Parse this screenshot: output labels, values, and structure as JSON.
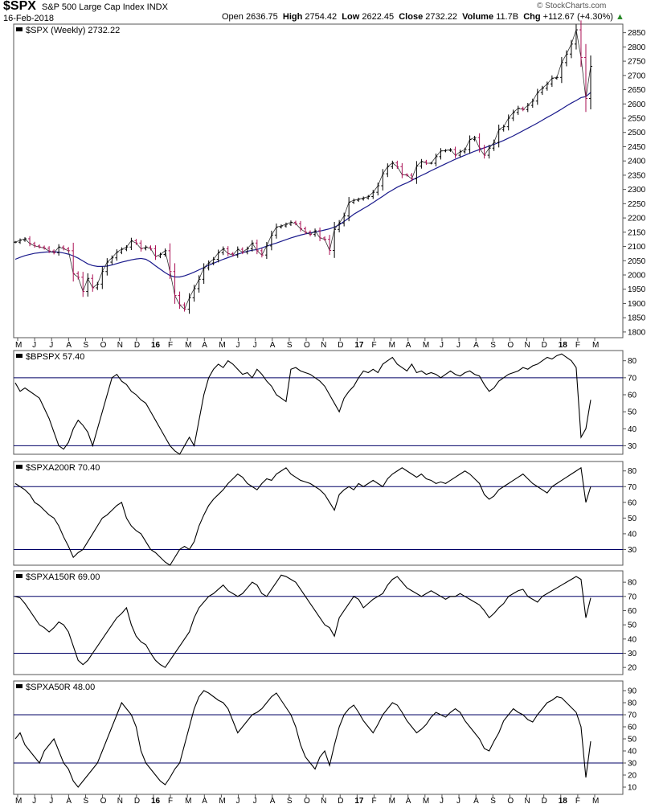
{
  "header": {
    "symbol": "$SPX",
    "description": "S&P 500 Large Cap Index  INDX",
    "date": "16-Feb-2018",
    "quote": {
      "open_label": "Open",
      "open": "2636.75",
      "high_label": "High",
      "high": "2754.42",
      "low_label": "Low",
      "low": "2622.45",
      "close_label": "Close",
      "close": "2732.22",
      "volume_label": "Volume",
      "volume": "11.7B",
      "chg_label": "Chg",
      "chg": "+112.67 (+4.30%)"
    },
    "credit": "© StockCharts.com"
  },
  "colors": {
    "price": "#000000",
    "down_bar": "#aa1155",
    "ma": "#1a1a8c",
    "ref_line": "#000066"
  },
  "x_axis": {
    "months_top": [
      "M",
      "J",
      "J",
      "A",
      "S",
      "O",
      "N",
      "D",
      "16",
      "F",
      "M",
      "A",
      "M",
      "J",
      "J",
      "A",
      "S",
      "O",
      "N",
      "D",
      "17",
      "F",
      "M",
      "A",
      "M",
      "J",
      "J",
      "A",
      "S",
      "O",
      "N",
      "D",
      "18",
      "F",
      "M"
    ],
    "months_bottom": [
      "M",
      "J",
      "J",
      "A",
      "S",
      "O",
      "N",
      "D",
      "16",
      "F",
      "M",
      "A",
      "M",
      "J",
      "J",
      "A",
      "S",
      "O",
      "N",
      "D",
      "17",
      "F",
      "M",
      "A",
      "M",
      "J",
      "J",
      "A",
      "S",
      "O",
      "N",
      "D",
      "18",
      "F",
      "M"
    ],
    "bold_labels": [
      "16",
      "17",
      "18"
    ]
  },
  "chart_data": [
    {
      "type": "line",
      "subtype": "ohlc-bars",
      "title": "$SPX (Weekly) 2732.22",
      "ylim": [
        1780,
        2880
      ],
      "yticks": [
        1800,
        1850,
        1900,
        1950,
        2000,
        2050,
        2100,
        2150,
        2200,
        2250,
        2300,
        2350,
        2400,
        2450,
        2500,
        2550,
        2600,
        2650,
        2700,
        2750,
        2800,
        2850
      ],
      "series": [
        {
          "values": [
            2115,
            2122,
            2127,
            2110,
            2102,
            2098,
            2094,
            2084,
            2078,
            2098,
            2092,
            2085,
            2005,
            1992,
            1942,
            1988,
            1955,
            1968,
            2012,
            2045,
            2060,
            2080,
            2090,
            2098,
            2120,
            2112,
            2092,
            2098,
            2092,
            2065,
            2072,
            2085,
            2012,
            1928,
            1895,
            1880,
            1920,
            1952,
            1985,
            2025,
            2042,
            2055,
            2078,
            2092,
            2075,
            2070,
            2090,
            2080,
            2092,
            2112,
            2085,
            2070,
            2102,
            2140,
            2168,
            2172,
            2178,
            2185,
            2180,
            2162,
            2150,
            2142,
            2155,
            2130,
            2125,
            2086,
            2160,
            2182,
            2207,
            2255,
            2262,
            2266,
            2270,
            2275,
            2290,
            2313,
            2355,
            2380,
            2393,
            2380,
            2352,
            2350,
            2337,
            2382,
            2398,
            2392,
            2392,
            2415,
            2435,
            2437,
            2440,
            2420,
            2432,
            2440,
            2475,
            2482,
            2445,
            2420,
            2445,
            2465,
            2510,
            2520,
            2550,
            2570,
            2585,
            2580,
            2595,
            2610,
            2640,
            2655,
            2670,
            2690,
            2693,
            2745,
            2775,
            2810,
            2860,
            2763,
            2619,
            2732
          ]
        },
        {
          "name": "",
          "values": [
            2055,
            2062,
            2068,
            2072,
            2076,
            2078,
            2080,
            2081,
            2081,
            2080,
            2077,
            2073,
            2067,
            2059,
            2049,
            2039,
            2033,
            2030,
            2030,
            2031,
            2035,
            2040,
            2045,
            2049,
            2053,
            2056,
            2058,
            2055,
            2045,
            2032,
            2020,
            2008,
            1998,
            1993,
            1993,
            1997,
            2003,
            2010,
            2018,
            2026,
            2034,
            2041,
            2048,
            2055,
            2061,
            2067,
            2073,
            2078,
            2083,
            2087,
            2089,
            2095,
            2101,
            2107,
            2112,
            2118,
            2124,
            2130,
            2135,
            2140,
            2144,
            2148,
            2150,
            2154,
            2158,
            2162,
            2168,
            2176,
            2188,
            2200,
            2213,
            2223,
            2233,
            2243,
            2254,
            2265,
            2276,
            2288,
            2298,
            2308,
            2316,
            2323,
            2332,
            2341,
            2349,
            2357,
            2366,
            2374,
            2382,
            2390,
            2398,
            2406,
            2413,
            2420,
            2427,
            2434,
            2440,
            2446,
            2452,
            2458,
            2465,
            2472,
            2480,
            2488,
            2497,
            2506,
            2515,
            2524,
            2533,
            2543,
            2553,
            2562,
            2572,
            2582,
            2593,
            2603,
            2612,
            2622,
            2626,
            2640
          ]
        }
      ]
    },
    {
      "type": "line",
      "title": "$BPSPX 57.40",
      "ylim": [
        25,
        86
      ],
      "yticks": [
        30,
        40,
        50,
        60,
        70,
        80
      ],
      "reference_lines": [
        70,
        30
      ],
      "series": [
        {
          "values": [
            67,
            62,
            64,
            62,
            60,
            58,
            52,
            46,
            38,
            30,
            28,
            32,
            40,
            45,
            42,
            38,
            30,
            40,
            50,
            60,
            70,
            72,
            68,
            66,
            62,
            60,
            57,
            55,
            50,
            45,
            40,
            35,
            30,
            27,
            25,
            30,
            35,
            30,
            45,
            60,
            70,
            75,
            78,
            76,
            80,
            78,
            75,
            72,
            73,
            70,
            75,
            72,
            68,
            65,
            60,
            58,
            56,
            75,
            76,
            74,
            73,
            72,
            70,
            68,
            65,
            60,
            55,
            50,
            58,
            62,
            65,
            70,
            74,
            73,
            75,
            73,
            78,
            80,
            82,
            78,
            76,
            74,
            78,
            73,
            74,
            72,
            73,
            72,
            70,
            72,
            74,
            72,
            71,
            73,
            74,
            72,
            71,
            66,
            62,
            64,
            68,
            70,
            72,
            73,
            74,
            76,
            75,
            77,
            78,
            80,
            82,
            81,
            83,
            84,
            82,
            80,
            76,
            35,
            40,
            57
          ]
        }
      ]
    },
    {
      "type": "line",
      "title": "$SPXA200R 70.40",
      "ylim": [
        20,
        86
      ],
      "yticks": [
        30,
        40,
        50,
        60,
        70,
        80
      ],
      "reference_lines": [
        70,
        30
      ],
      "series": [
        {
          "values": [
            72,
            70,
            68,
            65,
            60,
            58,
            55,
            52,
            50,
            45,
            38,
            32,
            25,
            28,
            30,
            35,
            40,
            45,
            50,
            52,
            55,
            58,
            60,
            50,
            45,
            42,
            40,
            35,
            30,
            28,
            25,
            22,
            20,
            25,
            30,
            32,
            30,
            35,
            45,
            52,
            58,
            62,
            65,
            68,
            72,
            75,
            78,
            76,
            72,
            70,
            68,
            72,
            75,
            74,
            78,
            80,
            82,
            78,
            76,
            74,
            73,
            72,
            70,
            68,
            65,
            60,
            55,
            65,
            68,
            70,
            68,
            72,
            70,
            72,
            74,
            72,
            70,
            75,
            78,
            80,
            82,
            80,
            78,
            76,
            78,
            75,
            74,
            72,
            73,
            72,
            74,
            76,
            78,
            80,
            78,
            75,
            72,
            65,
            62,
            64,
            68,
            70,
            72,
            74,
            76,
            78,
            75,
            72,
            70,
            68,
            66,
            70,
            72,
            74,
            76,
            78,
            80,
            82,
            60,
            70
          ]
        }
      ]
    },
    {
      "type": "line",
      "title": "$SPXA150R 69.00",
      "ylim": [
        15,
        88
      ],
      "yticks": [
        20,
        30,
        40,
        50,
        60,
        70,
        80
      ],
      "reference_lines": [
        70,
        30
      ],
      "series": [
        {
          "values": [
            70,
            69,
            65,
            60,
            55,
            50,
            48,
            45,
            48,
            52,
            50,
            45,
            35,
            25,
            22,
            25,
            30,
            35,
            40,
            45,
            50,
            55,
            58,
            62,
            50,
            42,
            38,
            36,
            30,
            25,
            22,
            20,
            25,
            30,
            35,
            40,
            45,
            55,
            62,
            66,
            70,
            72,
            75,
            78,
            74,
            72,
            70,
            72,
            76,
            80,
            78,
            72,
            70,
            75,
            80,
            85,
            84,
            82,
            80,
            75,
            70,
            65,
            60,
            55,
            50,
            48,
            42,
            55,
            60,
            65,
            70,
            68,
            62,
            65,
            68,
            70,
            72,
            78,
            82,
            84,
            80,
            76,
            74,
            72,
            70,
            72,
            74,
            72,
            70,
            68,
            70,
            70,
            72,
            70,
            68,
            66,
            64,
            60,
            55,
            58,
            62,
            65,
            70,
            72,
            74,
            75,
            70,
            68,
            66,
            70,
            72,
            74,
            76,
            78,
            80,
            82,
            84,
            82,
            55,
            69
          ]
        }
      ]
    },
    {
      "type": "line",
      "title": "$SPXA50R 48.00",
      "ylim": [
        4,
        98
      ],
      "yticks": [
        10,
        20,
        30,
        40,
        50,
        60,
        70,
        80,
        90
      ],
      "reference_lines": [
        70,
        30
      ],
      "series": [
        {
          "values": [
            50,
            55,
            45,
            40,
            35,
            30,
            40,
            45,
            50,
            40,
            30,
            25,
            15,
            10,
            15,
            20,
            25,
            30,
            40,
            50,
            60,
            70,
            80,
            75,
            70,
            60,
            40,
            30,
            25,
            20,
            15,
            12,
            18,
            25,
            30,
            45,
            60,
            75,
            85,
            90,
            88,
            85,
            82,
            80,
            75,
            65,
            55,
            60,
            65,
            70,
            72,
            75,
            80,
            85,
            88,
            82,
            76,
            70,
            60,
            45,
            35,
            30,
            25,
            35,
            40,
            28,
            45,
            60,
            70,
            75,
            78,
            72,
            65,
            60,
            55,
            62,
            70,
            75,
            80,
            78,
            72,
            65,
            60,
            55,
            58,
            62,
            68,
            72,
            70,
            68,
            72,
            75,
            72,
            65,
            60,
            55,
            50,
            42,
            40,
            48,
            55,
            65,
            70,
            75,
            72,
            70,
            66,
            64,
            70,
            75,
            80,
            82,
            85,
            84,
            80,
            76,
            72,
            60,
            18,
            48
          ]
        }
      ]
    }
  ]
}
